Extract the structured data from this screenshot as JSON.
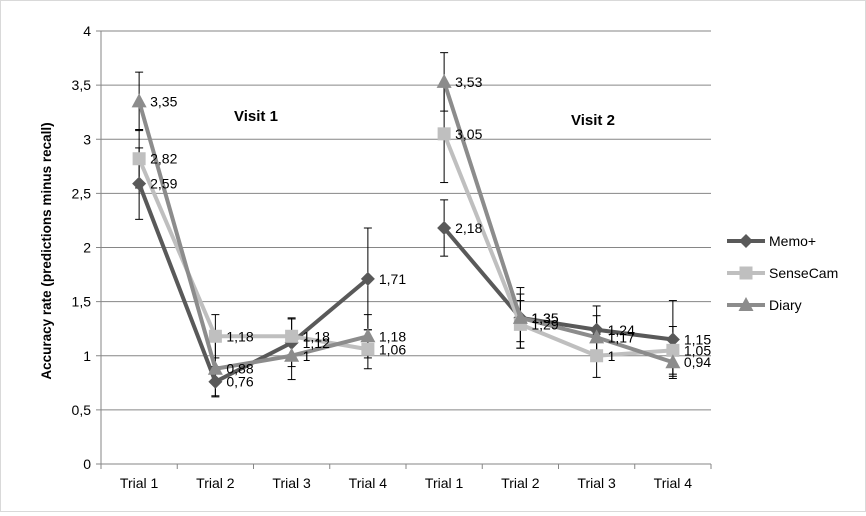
{
  "chart_data": {
    "type": "line",
    "title": "",
    "xlabel": "",
    "ylabel": "Accuracy rate (predictions minus recall)",
    "ylim": [
      0,
      4
    ],
    "ytick_step": 0.5,
    "ytick_labels": [
      "0",
      "0,5",
      "1",
      "1,5",
      "2",
      "2,5",
      "3",
      "3,5",
      "4"
    ],
    "categories": [
      "Trial 1",
      "Trial 2",
      "Trial 3",
      "Trial 4",
      "Trial 1",
      "Trial 2",
      "Trial 3",
      "Trial 4"
    ],
    "annotations": [
      "Visit 1",
      "Visit 2"
    ],
    "grid": "horizontal",
    "legend_position": "right",
    "series": [
      {
        "name": "Memo+",
        "color": "#595959",
        "marker": "diamond",
        "segments": [
          [
            0,
            1,
            2,
            3
          ],
          [
            4,
            5,
            6,
            7
          ]
        ],
        "values": [
          2.59,
          0.76,
          1.12,
          1.71,
          2.18,
          1.35,
          1.24,
          1.15
        ],
        "labels": [
          "2,59",
          "0,76",
          "1,12",
          "1,71",
          "2,18",
          "1,35",
          "1,24",
          "1,15"
        ],
        "error": [
          0.33,
          0.14,
          0.22,
          0.47,
          0.26,
          0.28,
          0.22,
          0.36
        ]
      },
      {
        "name": "SenseCam",
        "color": "#bfbfbf",
        "marker": "square",
        "segments": [
          [
            0,
            1,
            2,
            3
          ],
          [
            4,
            5,
            6,
            7
          ]
        ],
        "values": [
          2.82,
          1.18,
          1.18,
          1.06,
          3.05,
          1.29,
          1.0,
          1.05
        ],
        "labels": [
          "2,82",
          "1,18",
          "1,18",
          "1,06",
          "3,05",
          "1,29",
          "1",
          "1,05"
        ],
        "error": [
          0.27,
          0.2,
          0.17,
          0.18,
          0.45,
          0.22,
          0.2,
          0.22
        ]
      },
      {
        "name": "Diary",
        "color": "#8c8c8c",
        "marker": "triangle",
        "segments": [
          [
            0,
            1,
            2,
            3
          ],
          [
            4,
            5,
            6,
            7
          ]
        ],
        "values": [
          3.35,
          0.88,
          1.0,
          1.18,
          3.53,
          1.35,
          1.17,
          0.94
        ],
        "labels": [
          "3,35",
          "0,88",
          "1",
          "1,18",
          "3,53",
          "1,35",
          "1,17",
          "0,94"
        ],
        "error": [
          0.27,
          0.25,
          0.22,
          0.2,
          0.27,
          0.22,
          0.2,
          0.13
        ]
      }
    ]
  }
}
